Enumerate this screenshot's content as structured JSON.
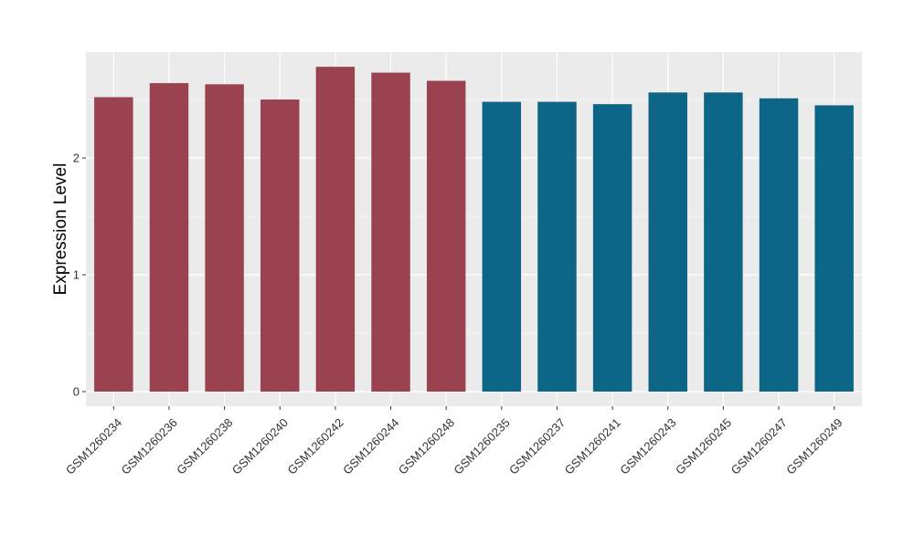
{
  "chart_data": {
    "type": "bar",
    "title": "",
    "xlabel": "",
    "ylabel": "Expression Level",
    "categories": [
      "GSM1260234",
      "GSM1260236",
      "GSM1260238",
      "GSM1260240",
      "GSM1260242",
      "GSM1260244",
      "GSM1260248",
      "GSM1260235",
      "GSM1260237",
      "GSM1260241",
      "GSM1260243",
      "GSM1260245",
      "GSM1260247",
      "GSM1260249"
    ],
    "values": [
      2.52,
      2.64,
      2.63,
      2.5,
      2.78,
      2.73,
      2.66,
      2.48,
      2.48,
      2.46,
      2.56,
      2.56,
      2.51,
      2.45
    ],
    "bar_colors": [
      "#9A4250",
      "#9A4250",
      "#9A4250",
      "#9A4250",
      "#9A4250",
      "#9A4250",
      "#9A4250",
      "#0C6585",
      "#0C6585",
      "#0C6585",
      "#0C6585",
      "#0C6585",
      "#0C6585",
      "#0C6585"
    ],
    "ylim": [
      -0.1,
      2.91
    ],
    "yticks": [
      0,
      1,
      2
    ],
    "ytick_labels": [
      "0",
      "1",
      "2"
    ],
    "grid": true,
    "panel_background": "#EBEBEB",
    "grid_color": "#FFFFFF",
    "legend": "none"
  }
}
